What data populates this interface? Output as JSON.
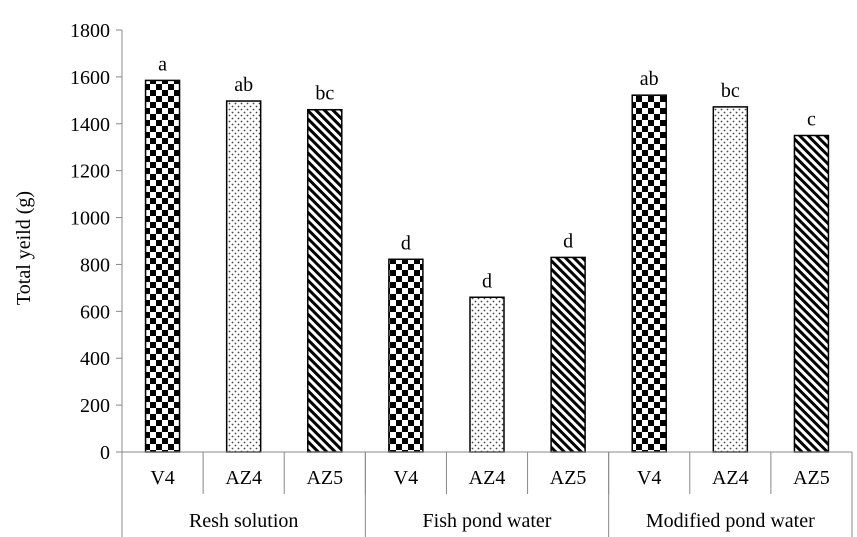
{
  "chart_data": {
    "type": "bar",
    "title": "",
    "xlabel": "",
    "ylabel": "Total yeild (g)",
    "ylim": [
      0,
      1800
    ],
    "yticks": [
      0,
      200,
      400,
      600,
      800,
      1000,
      1200,
      1400,
      1600,
      1800
    ],
    "grid": false,
    "legend": "none",
    "groups": [
      {
        "label": "Resh solution",
        "bars": [
          {
            "category": "V4",
            "value": 1585,
            "letter": "a",
            "pattern": "checker"
          },
          {
            "category": "AZ4",
            "value": 1497,
            "letter": "ab",
            "pattern": "dots"
          },
          {
            "category": "AZ5",
            "value": 1460,
            "letter": "bc",
            "pattern": "diagonal"
          }
        ]
      },
      {
        "label": "Fish pond water",
        "bars": [
          {
            "category": "V4",
            "value": 822,
            "letter": "d",
            "pattern": "checker"
          },
          {
            "category": "AZ4",
            "value": 660,
            "letter": "d",
            "pattern": "dots"
          },
          {
            "category": "AZ5",
            "value": 830,
            "letter": "d",
            "pattern": "diagonal"
          }
        ]
      },
      {
        "label": "Modified pond water",
        "bars": [
          {
            "category": "V4",
            "value": 1522,
            "letter": "ab",
            "pattern": "checker"
          },
          {
            "category": "AZ4",
            "value": 1472,
            "letter": "bc",
            "pattern": "dots"
          },
          {
            "category": "AZ5",
            "value": 1350,
            "letter": "c",
            "pattern": "diagonal"
          }
        ]
      }
    ]
  }
}
